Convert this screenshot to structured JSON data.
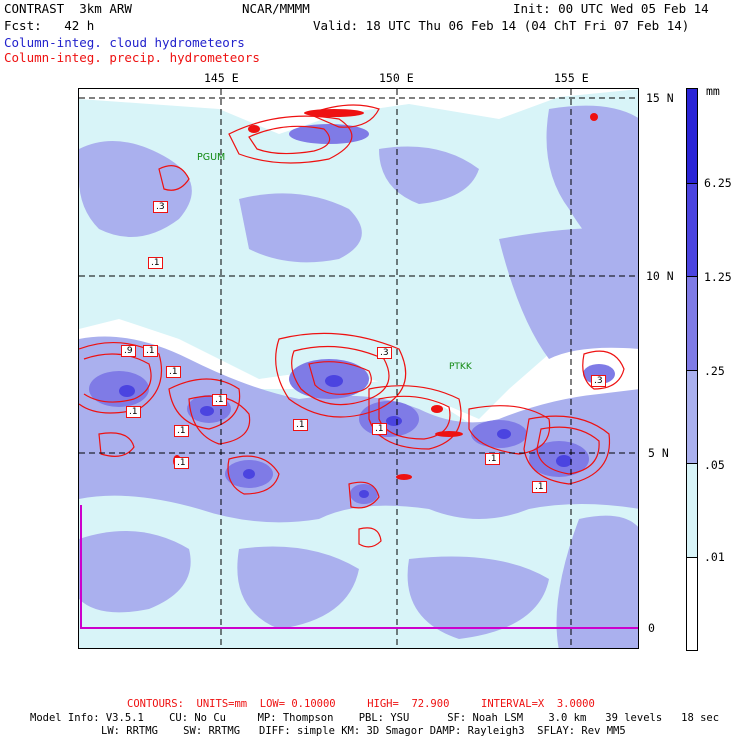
{
  "header": {
    "model": "CONTRAST  3km ARW",
    "org": "NCAR/MMMM",
    "init": "Init: 00 UTC Wed 05 Feb 14",
    "fcst": "Fcst:   42 h",
    "valid": "Valid: 18 UTC Thu 06 Feb 14 (04 ChT Fri 07 Feb 14)",
    "field1": "Column-integ. cloud hydrometeors",
    "field2": "Column-integ. precip. hydrometeors"
  },
  "axes": {
    "lon_labels": [
      "145 E",
      "150 E",
      "155 E"
    ],
    "lat_labels": [
      "15 N",
      "10 N",
      "5 N",
      "0"
    ]
  },
  "stations": [
    "PGUM",
    "PTKK"
  ],
  "contour_labels": [
    ".1",
    ".9",
    ".1",
    ".1",
    ".1",
    ".1",
    ".1",
    ".1",
    ".1",
    ".3",
    ".1",
    ".1",
    ".1",
    ".3",
    ".3"
  ],
  "colorbar": {
    "unit": "mm",
    "levels": [
      "6.25",
      "1.25",
      ".25",
      ".05",
      ".01"
    ],
    "colors": [
      "#2a24d6",
      "#4b44e0",
      "#7f7be6",
      "#aab0ee",
      "#d8f4f8",
      "#ffffff"
    ]
  },
  "footer": {
    "contours": "CONTOURS:  UNITS=mm  LOW= 0.10000     HIGH=  72.900     INTERVAL=X  3.0000",
    "info1": "Model Info: V3.5.1    CU: No Cu     MP: Thompson    PBL: YSU      SF: Noah LSM    3.0 km   39 levels   18 sec",
    "info2": "LW: RRTMG    SW: RRTMG   DIFF: simple KM: 3D Smagor DAMP: Rayleigh3  SFLAY: Rev MM5"
  },
  "colors": {
    "precip_contour": "#ee1111",
    "cloud_text": "#2222cc",
    "station": "#118811",
    "equator_line": "#cc00cc"
  }
}
